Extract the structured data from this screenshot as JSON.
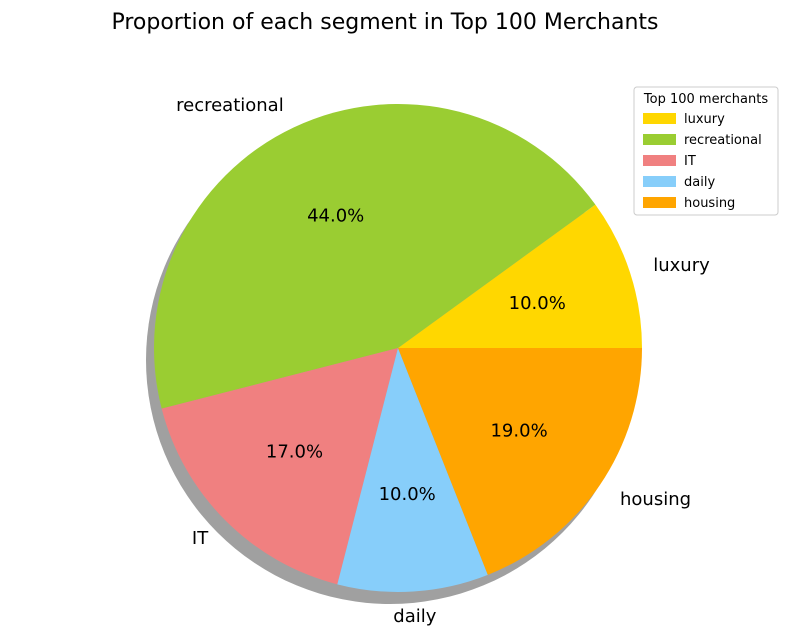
{
  "chart_data": {
    "type": "pie",
    "title": "Proportion of each segment in Top 100 Merchants",
    "categories": [
      "luxury",
      "recreational",
      "IT",
      "daily",
      "housing"
    ],
    "values": [
      10.0,
      44.0,
      17.0,
      10.0,
      19.0
    ],
    "percent_labels": [
      "10.0%",
      "44.0%",
      "17.0%",
      "10.0%",
      "19.0%"
    ],
    "colors": [
      "#FFD700",
      "#9ACD32",
      "#F08080",
      "#87CEFA",
      "#FFA500"
    ],
    "start_angle_deg": 0,
    "direction": "counterclockwise",
    "shadow": true,
    "legend": {
      "title": "Top 100 merchants",
      "placement": "top-right",
      "entries": [
        "luxury",
        "recreational",
        "IT",
        "daily",
        "housing"
      ]
    }
  }
}
